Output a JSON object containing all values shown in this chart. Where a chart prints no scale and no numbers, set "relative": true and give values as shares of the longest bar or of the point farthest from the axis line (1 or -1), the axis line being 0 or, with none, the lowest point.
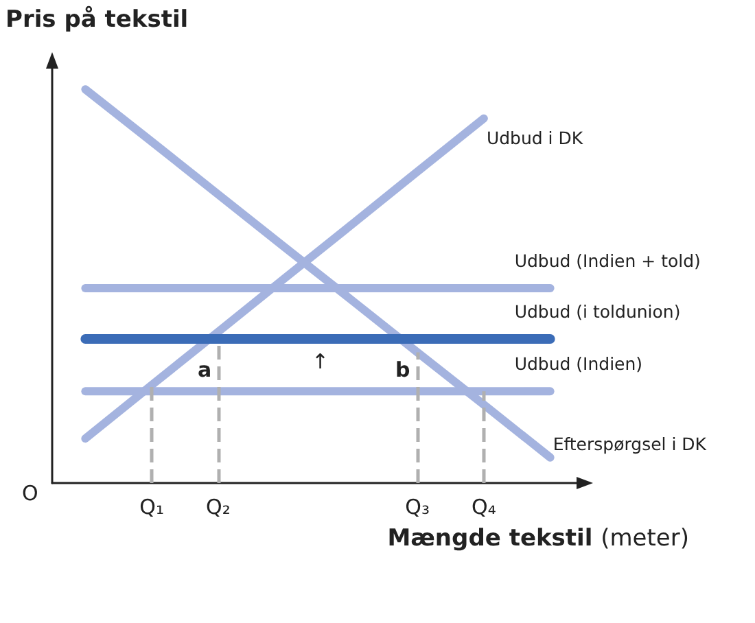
{
  "chart_data": {
    "type": "line",
    "relative": true,
    "ylabel": "Pris på tekstil",
    "xlabel": "Mængde tekstil (meter)",
    "categories": [
      null,
      "Q₁",
      "Q₂",
      null,
      null,
      "Q₃",
      "Q₄",
      null
    ],
    "series": [
      {
        "name": "Udbud i DK",
        "color": "#a4b3df",
        "values": [
          0.113,
          0.249,
          0.384,
          0.52,
          0.655,
          0.791,
          0.926,
          null
        ]
      },
      {
        "name": "Efterspørgsel i DK",
        "color": "#a4b3df",
        "values": [
          1,
          0.867,
          0.733,
          0.599,
          0.466,
          0.332,
          0.199,
          0.065
        ]
      },
      {
        "name": "Udbud (Indien + told)",
        "color": "#a4b3df",
        "values": [
          0.495,
          0.495,
          0.495,
          0.495,
          0.495,
          0.495,
          0.495,
          0.495
        ]
      },
      {
        "name": "Udbud (i toldunion)",
        "color": "#3b6cb7",
        "values": [
          0.366,
          0.366,
          0.366,
          0.366,
          0.366,
          0.366,
          0.366,
          0.366
        ]
      },
      {
        "name": "Udbud (Indien)",
        "color": "#a4b3df",
        "values": [
          0.233,
          0.233,
          0.233,
          0.233,
          0.233,
          0.233,
          0.233,
          0.233
        ]
      }
    ],
    "ref_lines": [
      {
        "axis": "x",
        "value": "Q₁",
        "color": "#b0b0b0",
        "line_style": "dashed"
      },
      {
        "axis": "x",
        "value": "Q₂",
        "color": "#b0b0b0",
        "line_style": "dashed"
      },
      {
        "axis": "x",
        "value": "Q₃",
        "color": "#b0b0b0",
        "line_style": "dashed"
      },
      {
        "axis": "x",
        "value": "Q₄",
        "color": "#b0b0b0",
        "line_style": "dashed"
      }
    ],
    "annotations": [
      "O",
      "a",
      "↑",
      "b"
    ],
    "legend": false,
    "grid": false,
    "marker": "none",
    "line_style": "solid"
  }
}
